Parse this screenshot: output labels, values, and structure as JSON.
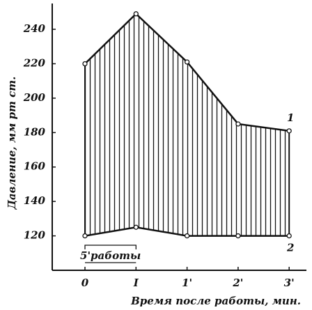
{
  "chart_data": {
    "type": "line",
    "x_label": "Время после работы, мин.",
    "y_label": "Давление, мм рт ст.",
    "categories": [
      "0",
      "I",
      "1'",
      "2'",
      "3'"
    ],
    "series": [
      {
        "name": "1",
        "color": "#111111",
        "values": [
          220,
          249,
          221,
          185,
          181
        ]
      },
      {
        "name": "2",
        "color": "#111111",
        "values": [
          120,
          125,
          120,
          120,
          120
        ]
      }
    ],
    "ylim": [
      100,
      255
    ],
    "yticks": [
      120,
      140,
      160,
      180,
      200,
      220,
      240
    ],
    "annotation": "5'работы",
    "hatch": true
  }
}
